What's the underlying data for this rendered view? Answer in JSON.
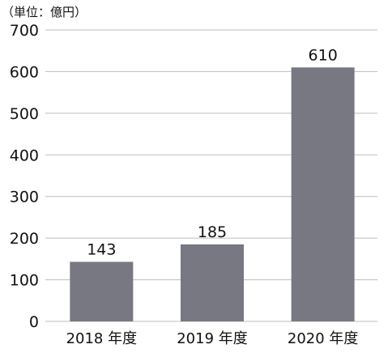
{
  "chart_data": {
    "type": "bar",
    "unit_label": "（単位：億円）",
    "categories": [
      "2018 年度",
      "2019 年度",
      "2020 年度"
    ],
    "values": [
      143,
      185,
      610
    ],
    "data_labels": [
      "143",
      "185",
      "610"
    ],
    "ylim": [
      0,
      700
    ],
    "yticks": [
      0,
      100,
      200,
      300,
      400,
      500,
      600,
      700
    ],
    "ytick_labels": [
      "0",
      "100",
      "200",
      "300",
      "400",
      "500",
      "600",
      "700"
    ],
    "grid": true,
    "bar_color": "#787882",
    "grid_color": "#bdbdbd",
    "title": "",
    "xlabel": "",
    "ylabel": ""
  }
}
